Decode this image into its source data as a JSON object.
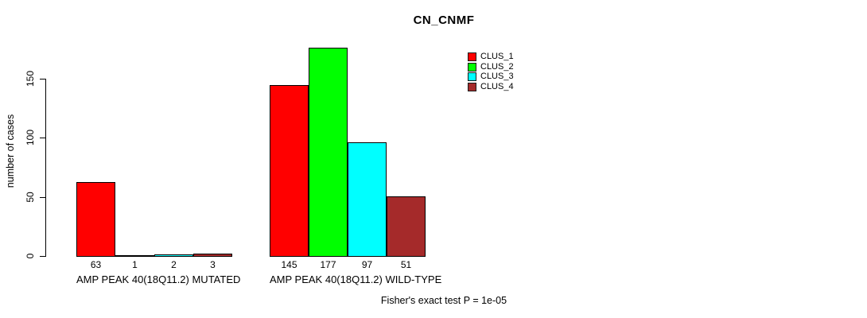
{
  "chart_data": {
    "type": "bar",
    "title": "CN_CNMF",
    "ylabel": "number of cases",
    "ylim": [
      0,
      178
    ],
    "yticks": [
      0,
      50,
      100,
      150
    ],
    "grid": false,
    "legend_position": "top-right",
    "series": [
      "CLUS_1",
      "CLUS_2",
      "CLUS_3",
      "CLUS_4"
    ],
    "colors": [
      "#FF0000",
      "#00FF00",
      "#00FFFF",
      "#A52A2A"
    ],
    "groups": [
      {
        "label": "AMP PEAK 40(18Q11.2) MUTATED",
        "values": [
          63,
          1,
          2,
          3
        ]
      },
      {
        "label": "AMP PEAK 40(18Q11.2) WILD-TYPE",
        "values": [
          145,
          177,
          97,
          51
        ]
      }
    ],
    "bar_value_labels": [
      [
        63,
        1,
        2,
        3
      ],
      [
        145,
        177,
        97,
        51
      ]
    ],
    "annotation": "Fisher's exact test P = 1e-05",
    "legend": [
      {
        "label": "CLUS_1",
        "color": "#FF0000"
      },
      {
        "label": "CLUS_2",
        "color": "#00FF00"
      },
      {
        "label": "CLUS_3",
        "color": "#00FFFF"
      },
      {
        "label": "CLUS_4",
        "color": "#A52A2A"
      }
    ]
  }
}
